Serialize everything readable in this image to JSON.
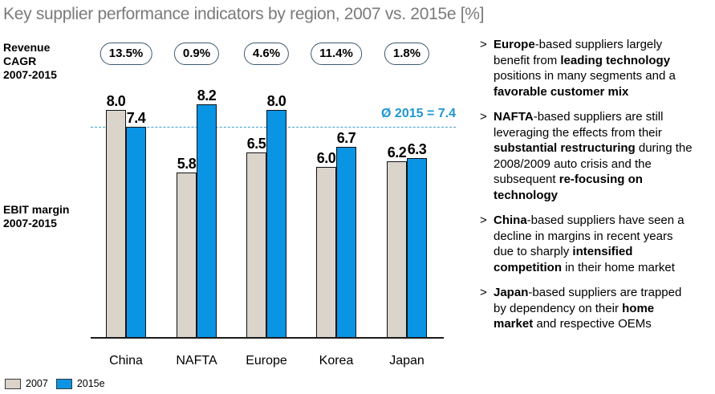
{
  "title": "Key supplier performance indicators by region, 2007 vs. 2015e [%]",
  "axis_labels": {
    "revenue": [
      "Revenue",
      "CAGR",
      "2007-2015"
    ],
    "ebit": [
      "EBIT margin",
      "2007-2015"
    ]
  },
  "chart_data": {
    "type": "bar",
    "title": "EBIT margin 2007-2015 by region",
    "categories": [
      "China",
      "NAFTA",
      "Europe",
      "Korea",
      "Japan"
    ],
    "series": [
      {
        "name": "2007",
        "color": "#dbd4cb",
        "values": [
          8.0,
          5.8,
          6.5,
          6.0,
          6.2
        ]
      },
      {
        "name": "2015e",
        "color": "#0a94e4",
        "values": [
          7.4,
          8.2,
          8.0,
          6.7,
          6.3
        ]
      }
    ],
    "revenue_cagr_badges": [
      "13.5%",
      "0.9%",
      "4.6%",
      "11.4%",
      "1.8%"
    ],
    "average_line": {
      "label": "Ø 2015 = 7.4",
      "value": 7.4,
      "line_color": "#3f9fd7",
      "label_color": "#1e96d2"
    },
    "ylim": [
      0,
      9
    ],
    "grid": false,
    "legend_position": "bottom-left"
  },
  "legend": {
    "items": [
      {
        "label": "2007",
        "color": "#dbd4cb"
      },
      {
        "label": "2015e",
        "color": "#0a94e4"
      }
    ]
  },
  "bullets": [
    {
      "marker": ">",
      "segments": [
        {
          "text": "Europe",
          "bold": true
        },
        {
          "text": "-based suppliers largely benefit from ",
          "bold": false
        },
        {
          "text": "leading technology",
          "bold": true
        },
        {
          "text": " positions in many segments and a ",
          "bold": false
        },
        {
          "text": "favorable customer mix",
          "bold": true
        }
      ]
    },
    {
      "marker": ">",
      "segments": [
        {
          "text": "NAFTA",
          "bold": true
        },
        {
          "text": "-based suppliers are still leveraging the effects from their ",
          "bold": false
        },
        {
          "text": "substantial restructuring",
          "bold": true
        },
        {
          "text": " during the 2008/2009 auto crisis and the subsequent ",
          "bold": false
        },
        {
          "text": "re-focusing on technology",
          "bold": true
        }
      ]
    },
    {
      "marker": ">",
      "segments": [
        {
          "text": "China",
          "bold": true
        },
        {
          "text": "-based suppliers have seen a decline in margins in recent years due to sharply ",
          "bold": false
        },
        {
          "text": "intensified competition",
          "bold": true
        },
        {
          "text": " in their home market",
          "bold": false
        }
      ]
    },
    {
      "marker": ">",
      "segments": [
        {
          "text": "Japan",
          "bold": true
        },
        {
          "text": "-based suppliers are trapped by dependency on their ",
          "bold": false
        },
        {
          "text": "home market",
          "bold": true
        },
        {
          "text": " and respective OEMs",
          "bold": false
        }
      ]
    }
  ]
}
